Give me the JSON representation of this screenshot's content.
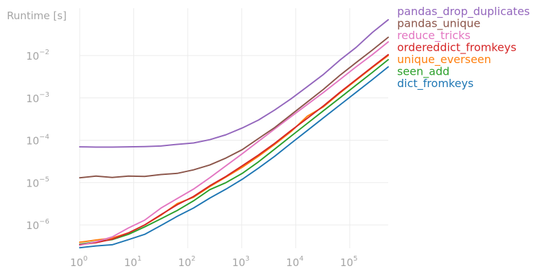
{
  "chart_data": {
    "type": "line",
    "title": "",
    "xlabel": "",
    "ylabel": "Runtime [s]",
    "xscale": "log",
    "yscale": "log",
    "xlim": [
      1,
      600000
    ],
    "ylim": [
      2.5e-07,
      0.1
    ],
    "grid": true,
    "legend_position": "top-right, outside plot",
    "x": [
      1,
      2,
      4,
      8,
      16,
      32,
      64,
      128,
      256,
      512,
      1024,
      2048,
      4096,
      8192,
      16384,
      32768,
      65536,
      131072,
      262144,
      524288
    ],
    "x_ticks": [
      {
        "base": "10",
        "exp": "0"
      },
      {
        "base": "10",
        "exp": "1"
      },
      {
        "base": "10",
        "exp": "2"
      },
      {
        "base": "10",
        "exp": "3"
      },
      {
        "base": "10",
        "exp": "4"
      },
      {
        "base": "10",
        "exp": "5"
      }
    ],
    "y_ticks": [
      {
        "base": "10",
        "exp": "−6"
      },
      {
        "base": "10",
        "exp": "−5"
      },
      {
        "base": "10",
        "exp": "−4"
      },
      {
        "base": "10",
        "exp": "−3"
      },
      {
        "base": "10",
        "exp": "−2"
      }
    ],
    "series": [
      {
        "name": "pandas_drop_duplicates",
        "color": "#9467bd",
        "values": [
          7e-05,
          6.9e-05,
          6.9e-05,
          7e-05,
          7.1e-05,
          7.3e-05,
          8e-05,
          8.6e-05,
          0.000103,
          0.000135,
          0.000195,
          0.0003,
          0.00052,
          0.00095,
          0.00185,
          0.0036,
          0.0078,
          0.0155,
          0.035,
          0.07
        ]
      },
      {
        "name": "pandas_unique",
        "color": "#8c564b",
        "values": [
          1.3e-05,
          1.42e-05,
          1.32e-05,
          1.43e-05,
          1.4e-05,
          1.55e-05,
          1.65e-05,
          2e-05,
          2.6e-05,
          3.8e-05,
          6e-05,
          0.00011,
          0.0002,
          0.0004,
          0.0008,
          0.0016,
          0.0034,
          0.0068,
          0.0135,
          0.027
        ]
      },
      {
        "name": "reduce_tricks",
        "color": "#e377c2",
        "values": [
          3.3e-07,
          4e-07,
          5.2e-07,
          8.5e-07,
          1.3e-06,
          2.5e-06,
          4.2e-06,
          7e-06,
          1.3e-05,
          2.5e-05,
          4.8e-05,
          9.5e-05,
          0.000185,
          0.00036,
          0.0007,
          0.00135,
          0.0027,
          0.0054,
          0.0105,
          0.021
        ]
      },
      {
        "name": "ordereddict_fromkeys",
        "color": "#d62728",
        "values": [
          3.4e-07,
          3.8e-07,
          4.6e-07,
          6.5e-07,
          1e-06,
          1.75e-06,
          3e-06,
          4.7e-06,
          8.4e-06,
          1.4e-05,
          2.5e-05,
          4.5e-05,
          8.5e-05,
          0.00017,
          0.00033,
          0.00065,
          0.00135,
          0.0027,
          0.0054,
          0.0105
        ]
      },
      {
        "name": "unique_everseen",
        "color": "#ff7f0e",
        "values": [
          3.9e-07,
          4.4e-07,
          4.9e-07,
          6.5e-07,
          1e-06,
          1.7e-06,
          3.2e-06,
          4.5e-06,
          8e-06,
          1.35e-05,
          2.3e-05,
          4.2e-05,
          8e-05,
          0.00016,
          0.00037,
          0.00062,
          0.0013,
          0.0026,
          0.0052,
          0.01
        ]
      },
      {
        "name": "seen_add",
        "color": "#2ca02c",
        "values": [
          3.5e-07,
          4e-07,
          4.5e-07,
          6e-07,
          9e-07,
          1.4e-06,
          2.2e-06,
          3.7e-06,
          6.8e-06,
          1e-05,
          1.65e-05,
          3.1e-05,
          6.2e-05,
          0.000125,
          0.00025,
          0.0005,
          0.001,
          0.002,
          0.004,
          0.008
        ]
      },
      {
        "name": "dict_fromkeys",
        "color": "#1f77b4",
        "values": [
          2.9e-07,
          3.2e-07,
          3.4e-07,
          4.5e-07,
          6e-07,
          9.7e-07,
          1.6e-06,
          2.5e-06,
          4.3e-06,
          7e-06,
          1.2e-05,
          2.2e-05,
          4.2e-05,
          8.5e-05,
          0.00017,
          0.00034,
          0.00068,
          0.00135,
          0.0027,
          0.0054
        ]
      }
    ]
  }
}
